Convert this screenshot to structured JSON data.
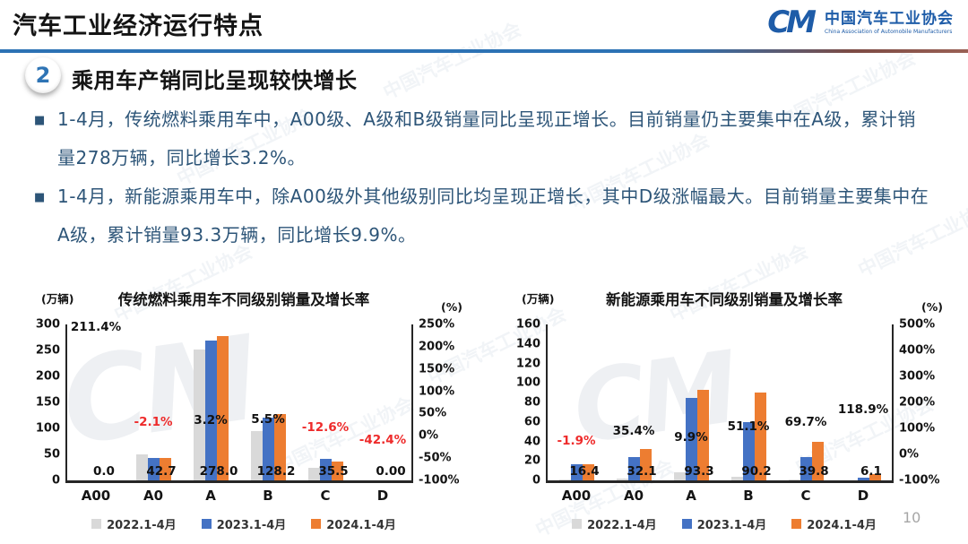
{
  "header": {
    "title": "汽车工业经济运行特点",
    "logo": {
      "mark": "CM",
      "name_cn": "中国汽车工业协会",
      "name_en": "China Association of Automobile Manufacturers"
    }
  },
  "section": {
    "number": "2",
    "title": "乘用车产销同比呈现较快增长"
  },
  "bullets": [
    "1-4月，传统燃料乘用车中，A00级、A级和B级销量同比呈现正增长。目前销量仍主要集中在A级，累计销量278万辆，同比增长3.2%。",
    "1-4月，新能源乘用车中，除A00级外其他级别同比均呈现正增长，其中D级涨幅最大。目前销量主要集中在A级，累计销量93.3万辆，同比增长9.9%。"
  ],
  "watermark": "中国汽车工业协会",
  "page_number": "10",
  "colors": {
    "accent_blue": "#2e74b5",
    "text_blue": "#2d5578",
    "bar_grey": "#d9d9d9",
    "bar_blue": "#4472c4",
    "bar_orange": "#ed7d31",
    "negative_red": "#ee2b2b",
    "logo_blue": "#1e5ca8"
  },
  "chart_data": [
    {
      "type": "bar",
      "title": "传统燃料乘用车不同级别销量及增长率",
      "unit_left": "(万辆)",
      "unit_right": "(%)",
      "categories": [
        "A00",
        "A0",
        "A",
        "B",
        "C",
        "D"
      ],
      "series": [
        {
          "name": "2022.1-4月",
          "color": "#d9d9d9",
          "values": [
            0.5,
            50.0,
            252.0,
            95.0,
            25.0,
            0.3
          ]
        },
        {
          "name": "2023.1-4月",
          "color": "#4472c4",
          "values": [
            0.0,
            43.6,
            269.4,
            121.5,
            40.6,
            0.0
          ]
        },
        {
          "name": "2024.1-4月",
          "color": "#ed7d31",
          "values": [
            0.0,
            42.7,
            278.0,
            128.2,
            35.5,
            0.0
          ]
        }
      ],
      "value_labels": [
        "0.0",
        "42.7",
        "278.0",
        "128.2",
        "35.5",
        "0.00"
      ],
      "growth": [
        {
          "label": "211.4%",
          "value": 211.4
        },
        {
          "label": "-2.1%",
          "value": -2.1
        },
        {
          "label": "3.2%",
          "value": 3.2
        },
        {
          "label": "5.5%",
          "value": 5.5
        },
        {
          "label": "-12.6%",
          "value": -12.6
        },
        {
          "label": "-42.4%",
          "value": -42.4
        }
      ],
      "ylim_left": [
        0,
        300
      ],
      "yticks_left": [
        300,
        250,
        200,
        150,
        100,
        50,
        0
      ],
      "ylim_right": [
        -100,
        250
      ],
      "yticks_right": [
        250,
        200,
        150,
        100,
        50,
        0,
        -50,
        -100
      ],
      "grid": false,
      "legend_position": "bottom"
    },
    {
      "type": "bar",
      "title": "新能源乘用车不同级别销量及增长率",
      "unit_left": "(万辆)",
      "unit_right": "(%)",
      "categories": [
        "A00",
        "A0",
        "A",
        "B",
        "C",
        "D"
      ],
      "series": [
        {
          "name": "2022.1-4月",
          "color": "#d9d9d9",
          "values": [
            1.0,
            1.5,
            8.5,
            4.0,
            1.0,
            0.3
          ]
        },
        {
          "name": "2023.1-4月",
          "color": "#4472c4",
          "values": [
            16.7,
            23.7,
            84.9,
            59.6,
            23.5,
            2.8
          ]
        },
        {
          "name": "2024.1-4月",
          "color": "#ed7d31",
          "values": [
            16.4,
            32.1,
            93.3,
            90.2,
            39.8,
            6.1
          ]
        }
      ],
      "value_labels": [
        "16.4",
        "32.1",
        "93.3",
        "90.2",
        "39.8",
        "6.1"
      ],
      "growth": [
        {
          "label": "-1.9%",
          "value": -1.9
        },
        {
          "label": "35.4%",
          "value": 35.4
        },
        {
          "label": "9.9%",
          "value": 9.9
        },
        {
          "label": "51.1%",
          "value": 51.1
        },
        {
          "label": "69.7%",
          "value": 69.7
        },
        {
          "label": "118.9%",
          "value": 118.9
        }
      ],
      "ylim_left": [
        0,
        160
      ],
      "yticks_left": [
        160,
        140,
        120,
        100,
        80,
        60,
        40,
        20,
        0
      ],
      "ylim_right": [
        -100,
        500
      ],
      "yticks_right": [
        500,
        400,
        300,
        200,
        100,
        0,
        -100
      ],
      "grid": false,
      "legend_position": "bottom"
    }
  ]
}
